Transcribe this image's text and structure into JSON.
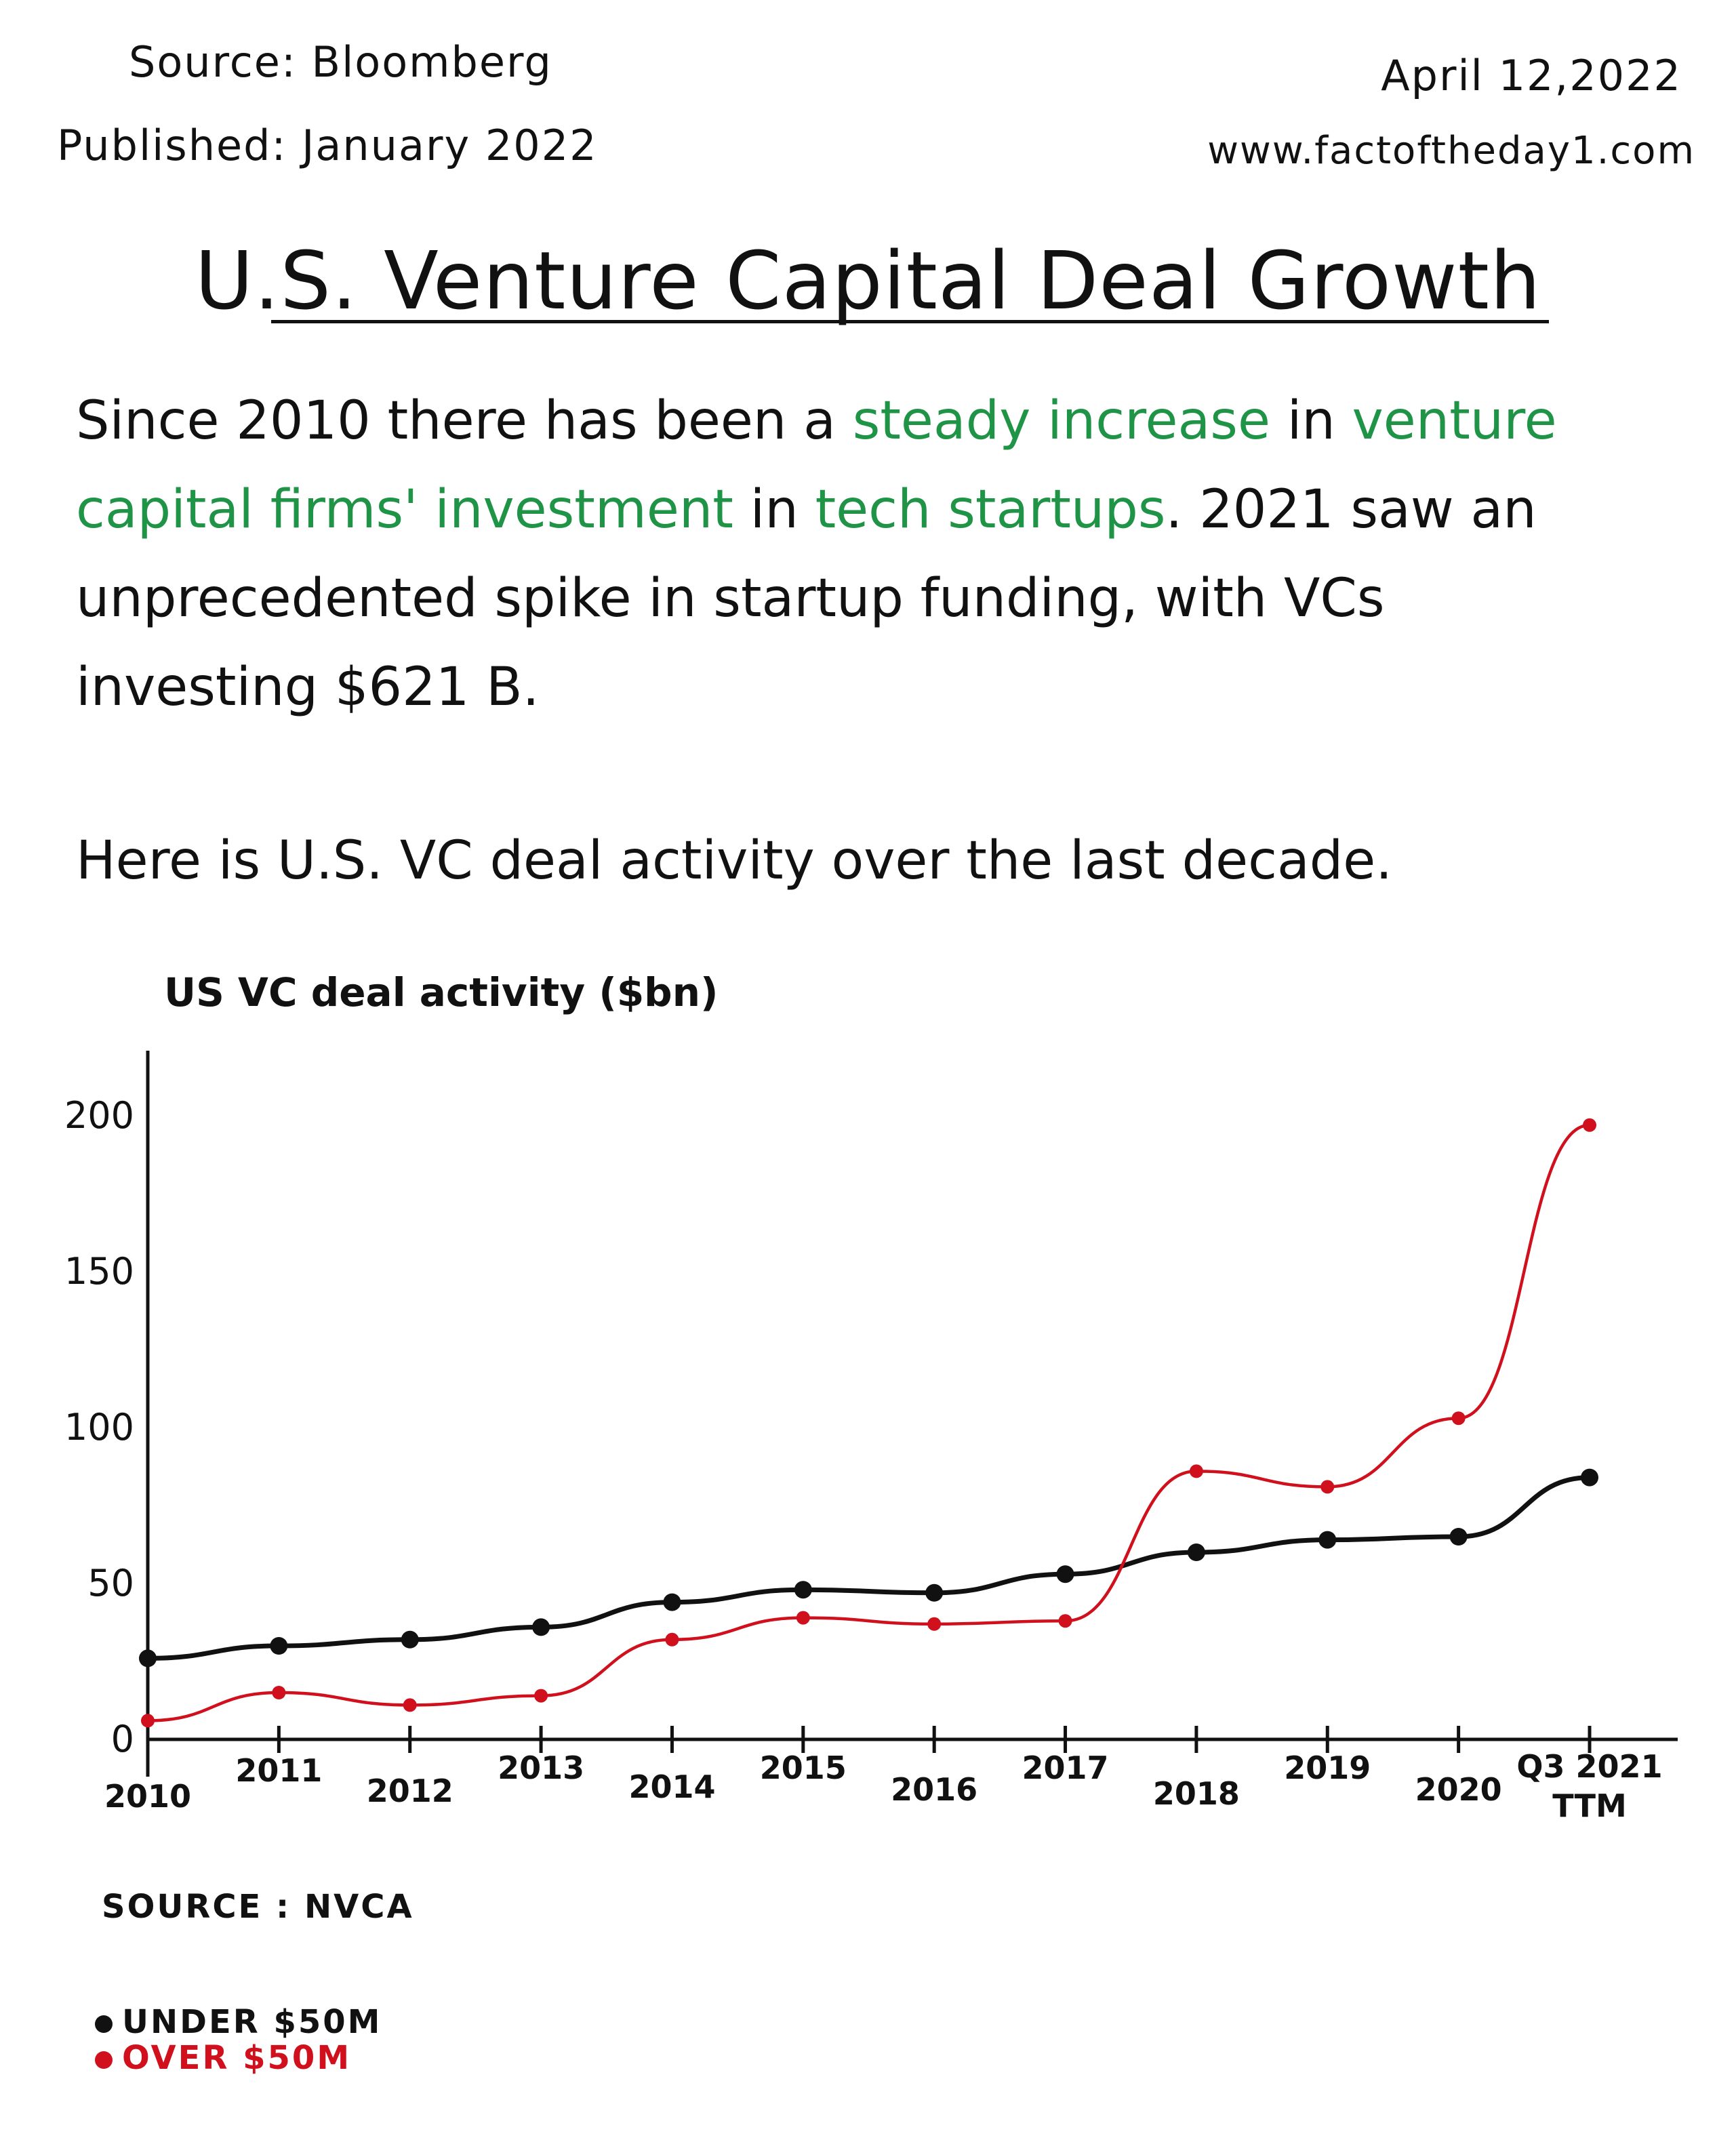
{
  "header": {
    "source": "Source: Bloomberg",
    "published": "Published: January 2022",
    "date": "April 12,2022",
    "website": "www.factoftheday1.com"
  },
  "title": "U.S. Venture Capital Deal Growth",
  "intro": {
    "t1": "Since 2010 there has been a ",
    "h1": "steady increase",
    "t2": " in ",
    "h2": "venture capital firms' investment",
    "t3": " in ",
    "h3": "tech startups",
    "t4": ". 2021 saw an unprecedented spike in startup funding, with VCs investing $621 B."
  },
  "note": "Here is U.S. VC deal activity over the last decade.",
  "colors": {
    "highlight": "#1f9447",
    "under": "#111111",
    "over": "#d0101c"
  },
  "chart_data": {
    "type": "line",
    "ylabel": "US VC deal activity ($bn)",
    "ylim": [
      0,
      220
    ],
    "yticks": [
      0,
      50,
      100,
      150,
      200
    ],
    "categories": [
      "2010",
      "2011",
      "2012",
      "2013",
      "2014",
      "2015",
      "2016",
      "2017",
      "2018",
      "2019",
      "2020",
      "Q3 2021 TTM"
    ],
    "series": [
      {
        "name": "UNDER $50M",
        "color": "#111111",
        "values": [
          26,
          30,
          32,
          36,
          44,
          48,
          47,
          53,
          60,
          64,
          65,
          84
        ]
      },
      {
        "name": "OVER $50M",
        "color": "#d0101c",
        "values": [
          6,
          15,
          11,
          14,
          32,
          39,
          37,
          38,
          86,
          81,
          103,
          197
        ]
      }
    ],
    "grid": false,
    "legend_position": "bottom-left"
  },
  "source_note": "SOURCE : NVCA",
  "legend": {
    "under": "UNDER $50M",
    "over": "OVER $50M"
  }
}
